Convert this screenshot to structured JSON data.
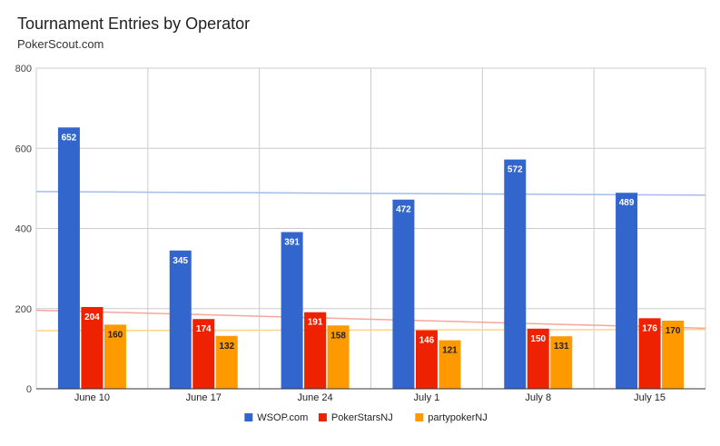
{
  "chart_data": {
    "type": "bar",
    "title": "Tournament Entries by Operator",
    "subtitle": "PokerScout.com",
    "categories": [
      "June 10",
      "June 17",
      "June 24",
      "July 1",
      "July 8",
      "July 15"
    ],
    "series": [
      {
        "name": "WSOP.com",
        "color": "#3366cc",
        "label_color": "#ffffff",
        "values": [
          652,
          345,
          391,
          472,
          572,
          489
        ],
        "trendline": {
          "color": "#a4bdeb",
          "start": 492,
          "end": 483
        }
      },
      {
        "name": "PokerStarsNJ",
        "color": "#ee2200",
        "label_color": "#ffffff",
        "values": [
          204,
          174,
          191,
          146,
          150,
          176
        ],
        "trendline": {
          "color": "#f4a89a",
          "start": 196,
          "end": 151
        }
      },
      {
        "name": "partypokerNJ",
        "color": "#ff9900",
        "label_color": "#222222",
        "values": [
          160,
          132,
          158,
          121,
          131,
          170
        ],
        "trendline": {
          "color": "#ffd38a",
          "start": 145,
          "end": 148
        }
      }
    ],
    "yticks": [
      "0",
      "200",
      "400",
      "600",
      "800"
    ],
    "ylim": [
      0,
      800
    ],
    "grid": true,
    "legend": "bottom"
  }
}
